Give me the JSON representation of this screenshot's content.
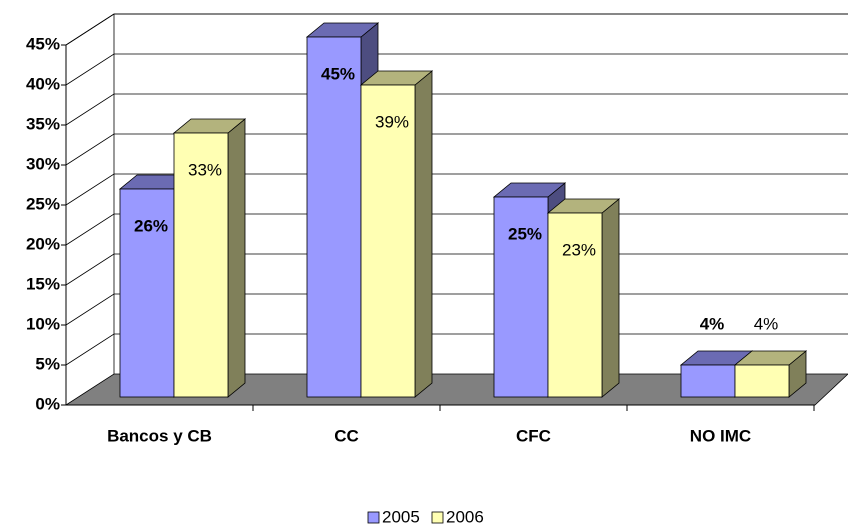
{
  "chart_data": {
    "type": "bar3d",
    "categories": [
      "Bancos y CB",
      "CC",
      "CFC",
      "NO IMC"
    ],
    "series": [
      {
        "name": "2005",
        "color": "#9999ff",
        "values": [
          26,
          45,
          25,
          4
        ],
        "value_labels": [
          "26%",
          "45%",
          "25%",
          "4%"
        ]
      },
      {
        "name": "2006",
        "color": "#ffffb3",
        "values": [
          33,
          39,
          23,
          4
        ],
        "value_labels": [
          "33%",
          "39%",
          "23%",
          "4%"
        ]
      }
    ],
    "ylim": [
      0,
      45
    ],
    "yticks": [
      {
        "value": 0,
        "label": "0%"
      },
      {
        "value": 5,
        "label": "5%"
      },
      {
        "value": 10,
        "label": "10%"
      },
      {
        "value": 15,
        "label": "15%"
      },
      {
        "value": 20,
        "label": "20%"
      },
      {
        "value": 25,
        "label": "25%"
      },
      {
        "value": 30,
        "label": "30%"
      },
      {
        "value": 35,
        "label": "35%"
      },
      {
        "value": 40,
        "label": "40%"
      },
      {
        "value": 45,
        "label": "45%"
      }
    ],
    "grid": true,
    "legend": "bottom"
  }
}
